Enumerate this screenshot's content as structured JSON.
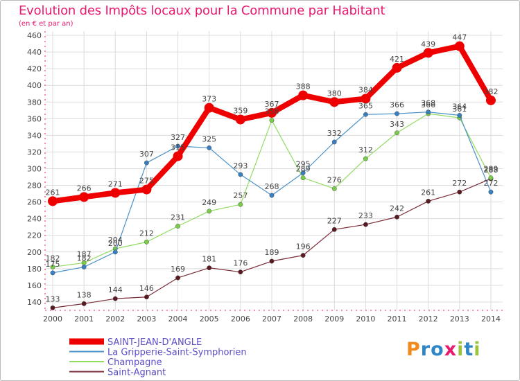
{
  "title": "Evolution des Impôts locaux pour la Commune par Habitant",
  "subtitle": "(en € et par an)",
  "logo": {
    "p": "P",
    "r": "r",
    "o": "o",
    "x": "x",
    "i1": "i",
    "t": "t",
    "i2": "i"
  },
  "colors": {
    "title": "#e8196e",
    "grid": "#dcdcdc",
    "axis_dash": "#e8196e",
    "text": "#444444"
  },
  "chart_data": {
    "type": "line",
    "x": [
      2000,
      2001,
      2002,
      2003,
      2004,
      2005,
      2006,
      2007,
      2008,
      2009,
      2010,
      2011,
      2012,
      2013,
      2014
    ],
    "ylim": [
      130,
      465
    ],
    "yticks": [
      140,
      160,
      180,
      200,
      220,
      240,
      260,
      280,
      300,
      320,
      340,
      360,
      380,
      400,
      420,
      440,
      460
    ],
    "grid": true,
    "legend_position": "bottom-left",
    "series": [
      {
        "name": "Saint-Agnant",
        "color": "#7a2a36",
        "dot": "#5a1a22",
        "width": 1.2,
        "marker": 3.2,
        "values": [
          133,
          138,
          144,
          146,
          169,
          181,
          176,
          189,
          196,
          227,
          233,
          242,
          261,
          272,
          288
        ],
        "labels": [
          "133",
          "138",
          "144",
          "146",
          "169",
          "181",
          "176",
          "189",
          "196",
          "227",
          "233",
          "242",
          "261",
          "272",
          "288"
        ]
      },
      {
        "name": "Champagne",
        "color": "#90dc60",
        "dot": "#7ccc4c",
        "width": 1.2,
        "marker": 3.2,
        "values": [
          182,
          187,
          204,
          212,
          231,
          249,
          257,
          358,
          289,
          276,
          312,
          343,
          366,
          361,
          289
        ],
        "labels": [
          "182",
          "187",
          "204",
          "212",
          "231",
          "249",
          "257",
          "358",
          "289",
          "276",
          "312",
          "343",
          "366",
          "361",
          "289"
        ]
      },
      {
        "name": "La Gripperie-Saint-Symphorien",
        "color": "#4a90c8",
        "dot": "#3a80c0",
        "width": 1.2,
        "marker": 3.2,
        "values": [
          175,
          182,
          200,
          307,
          327,
          325,
          293,
          268,
          295,
          332,
          365,
          366,
          368,
          364,
          272
        ],
        "labels": [
          "175",
          "182",
          "200",
          "307",
          "327",
          "325",
          "293",
          "268",
          "295",
          "332",
          "365",
          "366",
          "368",
          "364",
          "272"
        ]
      },
      {
        "name": "SAINT-JEAN-D'ANGLE",
        "color": "#ee0000",
        "dot": "#ee0000",
        "width": 8,
        "marker": 7,
        "values": [
          261,
          266,
          271,
          275,
          315,
          373,
          359,
          367,
          388,
          380,
          384,
          421,
          439,
          447,
          382
        ],
        "labels": [
          "261",
          "266",
          "271",
          "275",
          "315",
          "373",
          "359",
          "367",
          "388",
          "380",
          "384",
          "421",
          "439",
          "447",
          "382"
        ]
      }
    ],
    "legend": [
      {
        "name": "SAINT-JEAN-D'ANGLE",
        "color": "#ee0000",
        "thickness": 9
      },
      {
        "name": "La Gripperie-Saint-Symphorien",
        "color": "#4a90c8",
        "thickness": 2
      },
      {
        "name": "Champagne",
        "color": "#90dc60",
        "thickness": 2
      },
      {
        "name": "Saint-Agnant",
        "color": "#7a2a36",
        "thickness": 2
      }
    ]
  }
}
